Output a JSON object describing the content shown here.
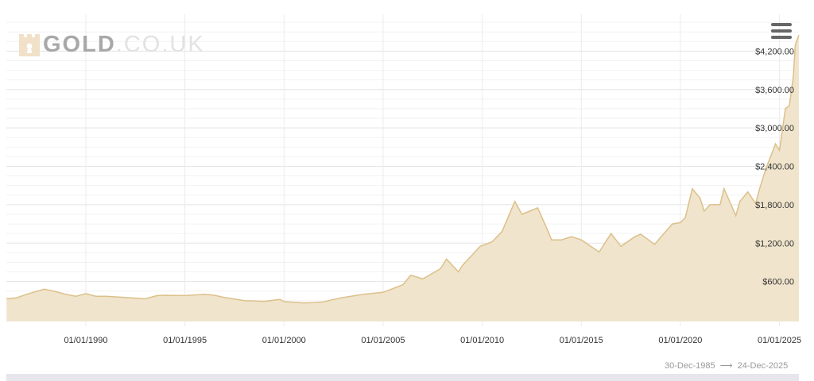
{
  "logo": {
    "brand": "GOLD",
    "domain": ".CO.UK",
    "icon": "castle-keyhole-icon",
    "icon_color": "#f0e1c8"
  },
  "menu": {
    "icon": "hamburger-menu-icon"
  },
  "range": {
    "from": "30-Dec-1985",
    "arrow": "⟶",
    "to": "24-Dec-2025"
  },
  "chart_data": {
    "type": "area",
    "title": "",
    "xlabel": "",
    "ylabel": "",
    "line_color": "#dcc08a",
    "fill_color": "#f0e4cc",
    "grid": true,
    "xlim": [
      1985.99,
      2025.98
    ],
    "ylim": [
      0,
      4800
    ],
    "x_ticks": [
      {
        "x": 1990,
        "label": "01/01/1990"
      },
      {
        "x": 1995,
        "label": "01/01/1995"
      },
      {
        "x": 2000,
        "label": "01/01/2000"
      },
      {
        "x": 2005,
        "label": "01/01/2005"
      },
      {
        "x": 2010,
        "label": "01/01/2010"
      },
      {
        "x": 2015,
        "label": "01/01/2015"
      },
      {
        "x": 2020,
        "label": "01/01/2020"
      },
      {
        "x": 2025,
        "label": "01/01/2025"
      }
    ],
    "y_ticks": [
      {
        "y": 600,
        "label": "$600.00"
      },
      {
        "y": 1200,
        "label": "$1,200.00"
      },
      {
        "y": 1800,
        "label": "$1,800.00"
      },
      {
        "y": 2400,
        "label": "$2,400.00"
      },
      {
        "y": 3000,
        "label": "$3,000.00"
      },
      {
        "y": 3600,
        "label": "$3,600.00"
      },
      {
        "y": 4200,
        "label": "$4,200.00"
      }
    ],
    "x": [
      1986,
      1986.5,
      1987,
      1987.9,
      1988.5,
      1989,
      1989.5,
      1990,
      1990.5,
      1991,
      1992,
      1993,
      1993.6,
      1994,
      1995,
      1996,
      1996.5,
      1997,
      1998,
      1999,
      1999.8,
      2000,
      2001,
      2001.5,
      2002,
      2002.5,
      2003,
      2004,
      2005,
      2006,
      2006.4,
      2007,
      2007.9,
      2008.2,
      2008.8,
      2009,
      2009.9,
      2010.5,
      2011,
      2011.65,
      2012,
      2012.8,
      2013.3,
      2013.5,
      2014,
      2014.5,
      2015,
      2015.9,
      2016.5,
      2017,
      2017.7,
      2018,
      2018.7,
      2019,
      2019.6,
      2020,
      2020.25,
      2020.6,
      2021,
      2021.2,
      2021.5,
      2022,
      2022.2,
      2022.8,
      2023,
      2023.4,
      2023.8,
      2024,
      2024.3,
      2024.8,
      2025,
      2025.3,
      2025.5,
      2025.7,
      2025.8,
      2025.98
    ],
    "y": [
      330,
      345,
      400,
      480,
      440,
      400,
      370,
      410,
      370,
      370,
      350,
      330,
      380,
      385,
      380,
      400,
      385,
      350,
      300,
      290,
      320,
      285,
      265,
      270,
      280,
      320,
      350,
      400,
      430,
      550,
      700,
      640,
      800,
      950,
      750,
      850,
      1150,
      1220,
      1380,
      1850,
      1650,
      1750,
      1400,
      1250,
      1250,
      1300,
      1250,
      1060,
      1350,
      1150,
      1300,
      1340,
      1180,
      1290,
      1500,
      1520,
      1600,
      2050,
      1900,
      1700,
      1800,
      1800,
      2050,
      1630,
      1850,
      2000,
      1820,
      2050,
      2350,
      2750,
      2650,
      3300,
      3350,
      3800,
      4300,
      4450
    ]
  }
}
